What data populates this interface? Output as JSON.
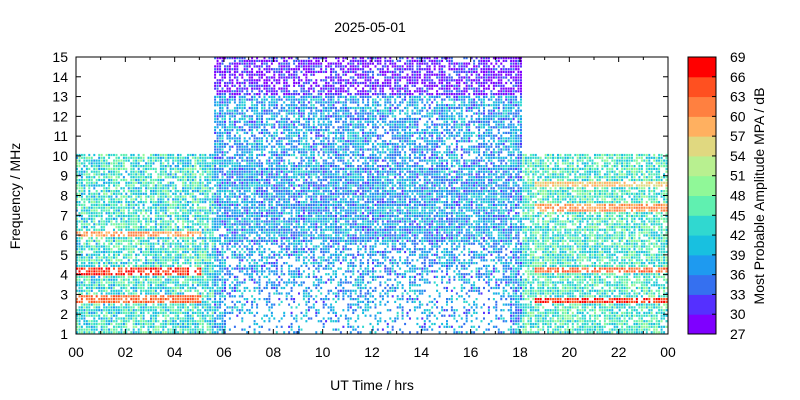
{
  "chart_data": {
    "type": "heatmap",
    "title": "2025-05-01",
    "xlabel": "UT Time / hrs",
    "ylabel": "Frequency / MHz",
    "colorbar_label": "Most Probable Amplitude MPA / dB",
    "xlim": [
      0,
      24
    ],
    "ylim": [
      1,
      15
    ],
    "x_ticks": [
      "00",
      "02",
      "04",
      "06",
      "08",
      "10",
      "12",
      "14",
      "16",
      "18",
      "20",
      "22",
      "00"
    ],
    "y_ticks": [
      "1",
      "2",
      "3",
      "4",
      "5",
      "6",
      "7",
      "8",
      "9",
      "10",
      "11",
      "12",
      "13",
      "14",
      "15"
    ],
    "colorbar_ticks": [
      "27",
      "30",
      "33",
      "36",
      "39",
      "42",
      "45",
      "48",
      "51",
      "54",
      "57",
      "60",
      "63",
      "66",
      "69"
    ],
    "color_scale": {
      "min": 27,
      "max": 69,
      "colors": [
        "#7f00ff",
        "#5530ff",
        "#3570f0",
        "#1e9af0",
        "#18c0e0",
        "#30d8d0",
        "#60f0b0",
        "#90f898",
        "#b8f090",
        "#e0d880",
        "#ffb060",
        "#ff8040",
        "#ff5020",
        "#ff0000"
      ]
    },
    "data_regions": [
      {
        "time_hrs": [
          0,
          5.5
        ],
        "freq_mhz": [
          1,
          10
        ],
        "mpa_db": 44
      },
      {
        "time_hrs": [
          5.5,
          18
        ],
        "freq_mhz": [
          1,
          15
        ],
        "mpa_db": 38
      },
      {
        "time_hrs": [
          18,
          24
        ],
        "freq_mhz": [
          1,
          10
        ],
        "mpa_db": 45
      },
      {
        "time_hrs": [
          5.5,
          18
        ],
        "freq_mhz": [
          13,
          15
        ],
        "mpa_db": 30
      }
    ],
    "notable_bands": [
      {
        "time_hrs": [
          0,
          5
        ],
        "freq_mhz": 2.7,
        "mpa_db": 63
      },
      {
        "time_hrs": [
          0,
          5
        ],
        "freq_mhz": 4.1,
        "mpa_db": 66
      },
      {
        "time_hrs": [
          0,
          5
        ],
        "freq_mhz": 6.0,
        "mpa_db": 60
      },
      {
        "time_hrs": [
          18.5,
          24
        ],
        "freq_mhz": 2.6,
        "mpa_db": 66
      },
      {
        "time_hrs": [
          18.5,
          24
        ],
        "freq_mhz": 4.2,
        "mpa_db": 63
      },
      {
        "time_hrs": [
          18.5,
          24
        ],
        "freq_mhz": 7.3,
        "mpa_db": 60
      },
      {
        "time_hrs": [
          18.5,
          24
        ],
        "freq_mhz": 8.5,
        "mpa_db": 57
      }
    ],
    "grid": false
  }
}
